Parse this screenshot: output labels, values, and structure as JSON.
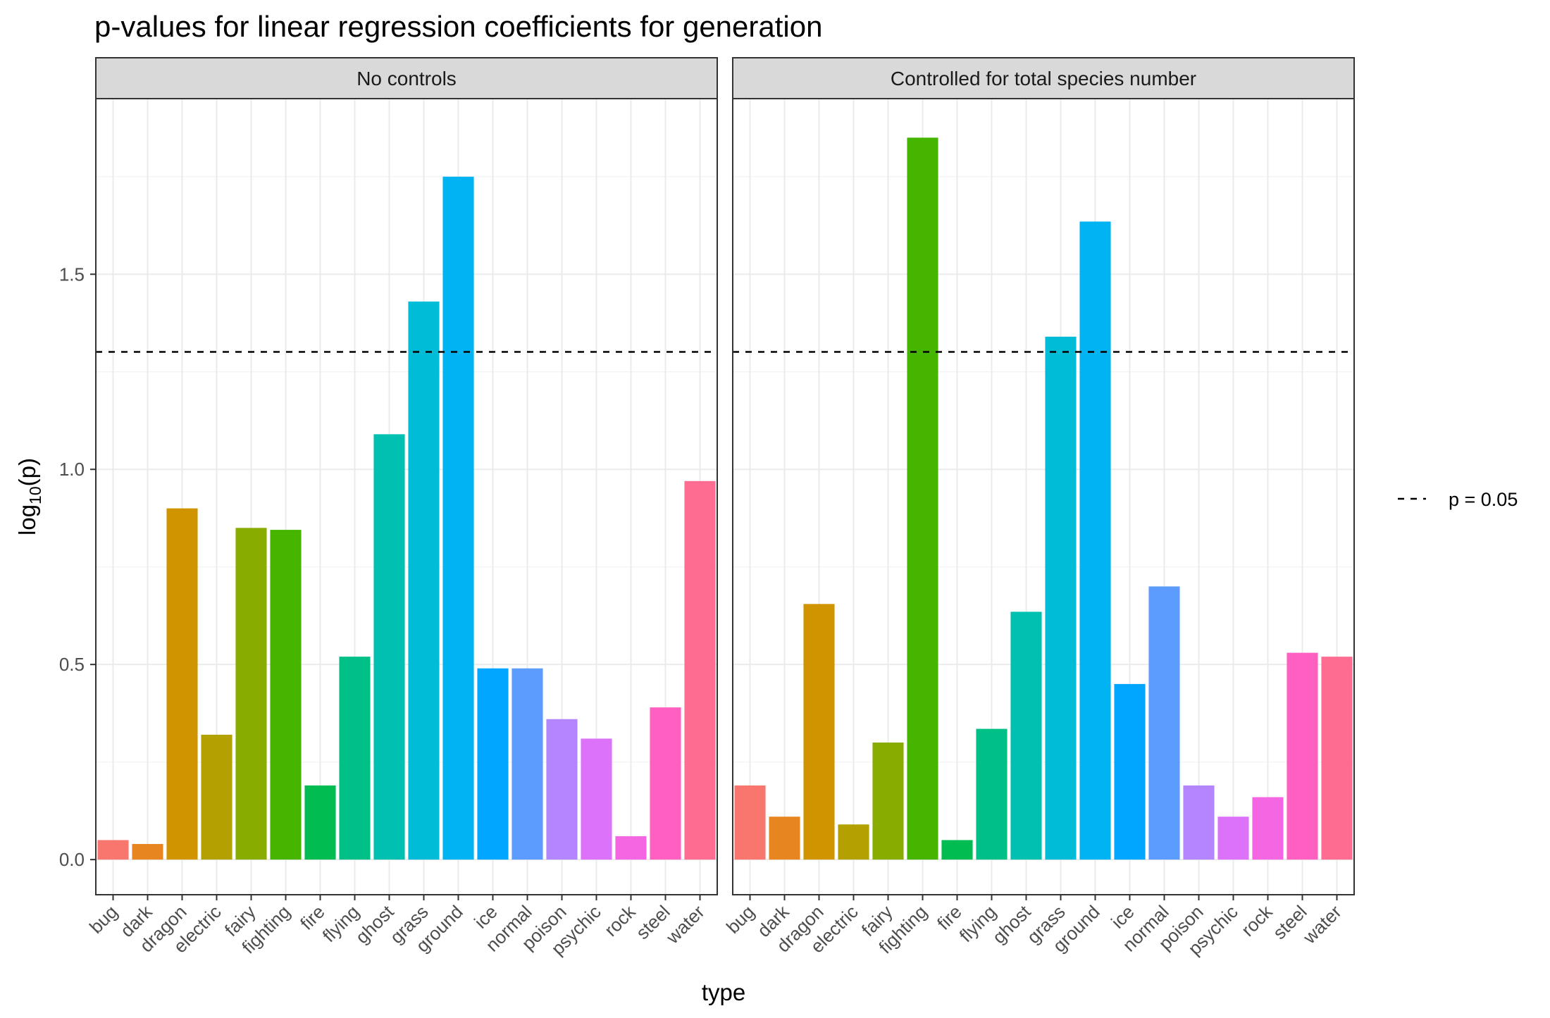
{
  "chart_data": {
    "type": "bar",
    "title": "p-values for linear regression coefficients for generation",
    "xlabel": "type",
    "ylabel_base": "log",
    "ylabel_sub": "10",
    "ylabel_rest": "(p)",
    "ylim": [
      -0.09,
      1.95
    ],
    "yticks": [
      0.0,
      0.5,
      1.0,
      1.5
    ],
    "ytick_labels": [
      "0.0",
      "0.5",
      "1.0",
      "1.5"
    ],
    "grid": true,
    "categories": [
      "bug",
      "dark",
      "dragon",
      "electric",
      "fairy",
      "fighting",
      "fire",
      "flying",
      "ghost",
      "grass",
      "ground",
      "ice",
      "normal",
      "poison",
      "psychic",
      "rock",
      "steel",
      "water"
    ],
    "colors": [
      "#F8766D",
      "#E7851E",
      "#D09400",
      "#B2A100",
      "#89AC00",
      "#45B500",
      "#00BC51",
      "#00C087",
      "#00C0B2",
      "#00BCD6",
      "#00B3F2",
      "#00A6FF",
      "#5C9CFF",
      "#B385FF",
      "#DC71FA",
      "#F566E3",
      "#FF5FC0",
      "#FF6C91"
    ],
    "reference_line": {
      "value": 1.30103,
      "style": "dashed",
      "legend_label": "p = 0.05"
    },
    "legend_position": "right",
    "panels": [
      {
        "strip_label": "No controls",
        "values": [
          0.05,
          0.04,
          0.9,
          0.32,
          0.85,
          0.845,
          0.19,
          0.52,
          1.09,
          1.43,
          1.75,
          0.49,
          0.49,
          0.36,
          0.31,
          0.06,
          0.39,
          0.97
        ]
      },
      {
        "strip_label": "Controlled for total species number",
        "values": [
          0.19,
          0.11,
          0.655,
          0.09,
          0.3,
          1.85,
          0.05,
          0.335,
          0.635,
          1.34,
          1.635,
          0.45,
          0.7,
          0.19,
          0.11,
          0.16,
          0.53,
          0.52
        ]
      }
    ]
  }
}
